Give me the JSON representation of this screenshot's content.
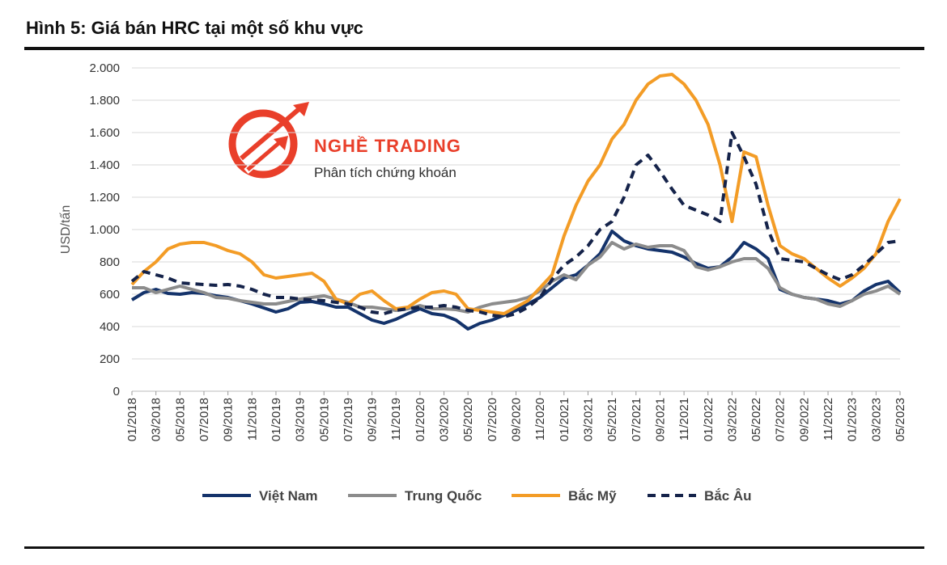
{
  "figure": {
    "title": "Hình 5: Giá bán HRC tại một số khu vực"
  },
  "watermark": {
    "name": "NGHỀ TRADING",
    "subtitle": "Phân tích chứng khoán",
    "color": "#e8351f"
  },
  "chart_data": {
    "type": "line",
    "title": "",
    "xlabel": "",
    "ylabel": "USD/tấn",
    "ylim": [
      0,
      2000
    ],
    "yticks": [
      0,
      200,
      400,
      600,
      800,
      1000,
      1200,
      1400,
      1600,
      1800,
      2000
    ],
    "ytick_labels": [
      "0",
      "200",
      "400",
      "600",
      "800",
      "1.000",
      "1.200",
      "1.400",
      "1.600",
      "1.800",
      "2.000"
    ],
    "x_range": [
      "01/2018",
      "05/2023"
    ],
    "xtick_labels": [
      "01/2018",
      "03/2018",
      "05/2018",
      "07/2018",
      "09/2018",
      "11/2018",
      "01/2019",
      "03/2019",
      "05/2019",
      "07/2019",
      "09/2019",
      "11/2019",
      "01/2020",
      "03/2020",
      "05/2020",
      "07/2020",
      "09/2020",
      "11/2020",
      "01/2021",
      "03/2021",
      "05/2021",
      "07/2021",
      "09/2021",
      "11/2021",
      "01/2022",
      "03/2022",
      "05/2022",
      "07/2022",
      "09/2022",
      "11/2022",
      "01/2023",
      "03/2023",
      "05/2023"
    ],
    "grid": true,
    "legend_position": "bottom",
    "x": [
      "01/2018",
      "02/2018",
      "03/2018",
      "04/2018",
      "05/2018",
      "06/2018",
      "07/2018",
      "08/2018",
      "09/2018",
      "10/2018",
      "11/2018",
      "12/2018",
      "01/2019",
      "02/2019",
      "03/2019",
      "04/2019",
      "05/2019",
      "06/2019",
      "07/2019",
      "08/2019",
      "09/2019",
      "10/2019",
      "11/2019",
      "12/2019",
      "01/2020",
      "02/2020",
      "03/2020",
      "04/2020",
      "05/2020",
      "06/2020",
      "07/2020",
      "08/2020",
      "09/2020",
      "10/2020",
      "11/2020",
      "12/2020",
      "01/2021",
      "02/2021",
      "03/2021",
      "04/2021",
      "05/2021",
      "06/2021",
      "07/2021",
      "08/2021",
      "09/2021",
      "10/2021",
      "11/2021",
      "12/2021",
      "01/2022",
      "02/2022",
      "03/2022",
      "04/2022",
      "05/2022",
      "06/2022",
      "07/2022",
      "08/2022",
      "09/2022",
      "10/2022",
      "11/2022",
      "12/2022",
      "01/2023",
      "02/2023",
      "03/2023",
      "04/2023",
      "05/2023"
    ],
    "series": [
      {
        "name": "Việt Nam",
        "color": "#14336b",
        "style": "solid",
        "values": [
          565,
          610,
          630,
          605,
          600,
          610,
          605,
          590,
          580,
          560,
          540,
          515,
          490,
          510,
          550,
          555,
          540,
          520,
          520,
          480,
          440,
          420,
          445,
          480,
          510,
          480,
          470,
          440,
          385,
          420,
          440,
          470,
          500,
          540,
          580,
          640,
          700,
          720,
          780,
          850,
          990,
          930,
          900,
          880,
          870,
          860,
          830,
          790,
          760,
          770,
          830,
          920,
          880,
          820,
          630,
          600,
          580,
          570,
          560,
          540,
          560,
          620,
          660,
          680,
          610
        ]
      },
      {
        "name": "Trung Quốc",
        "color": "#8c8c8c",
        "style": "solid",
        "values": [
          640,
          640,
          610,
          630,
          650,
          630,
          610,
          580,
          575,
          560,
          550,
          540,
          540,
          555,
          570,
          580,
          590,
          570,
          550,
          520,
          520,
          510,
          500,
          510,
          530,
          510,
          510,
          505,
          490,
          520,
          540,
          550,
          560,
          580,
          620,
          680,
          720,
          690,
          780,
          830,
          920,
          880,
          910,
          890,
          900,
          900,
          870,
          770,
          750,
          770,
          800,
          820,
          820,
          760,
          640,
          600,
          580,
          570,
          540,
          525,
          560,
          600,
          620,
          650,
          600
        ]
      },
      {
        "name": "Bắc Mỹ",
        "color": "#f39c26",
        "style": "solid",
        "values": [
          660,
          740,
          800,
          880,
          910,
          920,
          920,
          900,
          870,
          850,
          800,
          720,
          700,
          710,
          720,
          730,
          680,
          570,
          540,
          600,
          620,
          560,
          510,
          520,
          570,
          610,
          620,
          600,
          510,
          500,
          490,
          480,
          520,
          560,
          640,
          720,
          960,
          1150,
          1300,
          1400,
          1560,
          1650,
          1800,
          1900,
          1950,
          1960,
          1900,
          1800,
          1650,
          1400,
          1050,
          1480,
          1450,
          1150,
          900,
          850,
          820,
          760,
          700,
          650,
          700,
          760,
          850,
          1050,
          1190
        ]
      },
      {
        "name": "Bắc Âu",
        "color": "#15234a",
        "style": "dashed",
        "values": [
          680,
          740,
          720,
          700,
          670,
          665,
          660,
          655,
          660,
          650,
          630,
          600,
          580,
          580,
          570,
          565,
          560,
          550,
          540,
          520,
          490,
          480,
          500,
          510,
          520,
          520,
          530,
          520,
          500,
          490,
          470,
          460,
          480,
          520,
          580,
          690,
          780,
          830,
          900,
          1000,
          1050,
          1200,
          1400,
          1460,
          1360,
          1250,
          1150,
          1120,
          1090,
          1050,
          1600,
          1450,
          1280,
          1000,
          820,
          810,
          800,
          760,
          720,
          690,
          720,
          780,
          850,
          920,
          930
        ]
      }
    ]
  }
}
